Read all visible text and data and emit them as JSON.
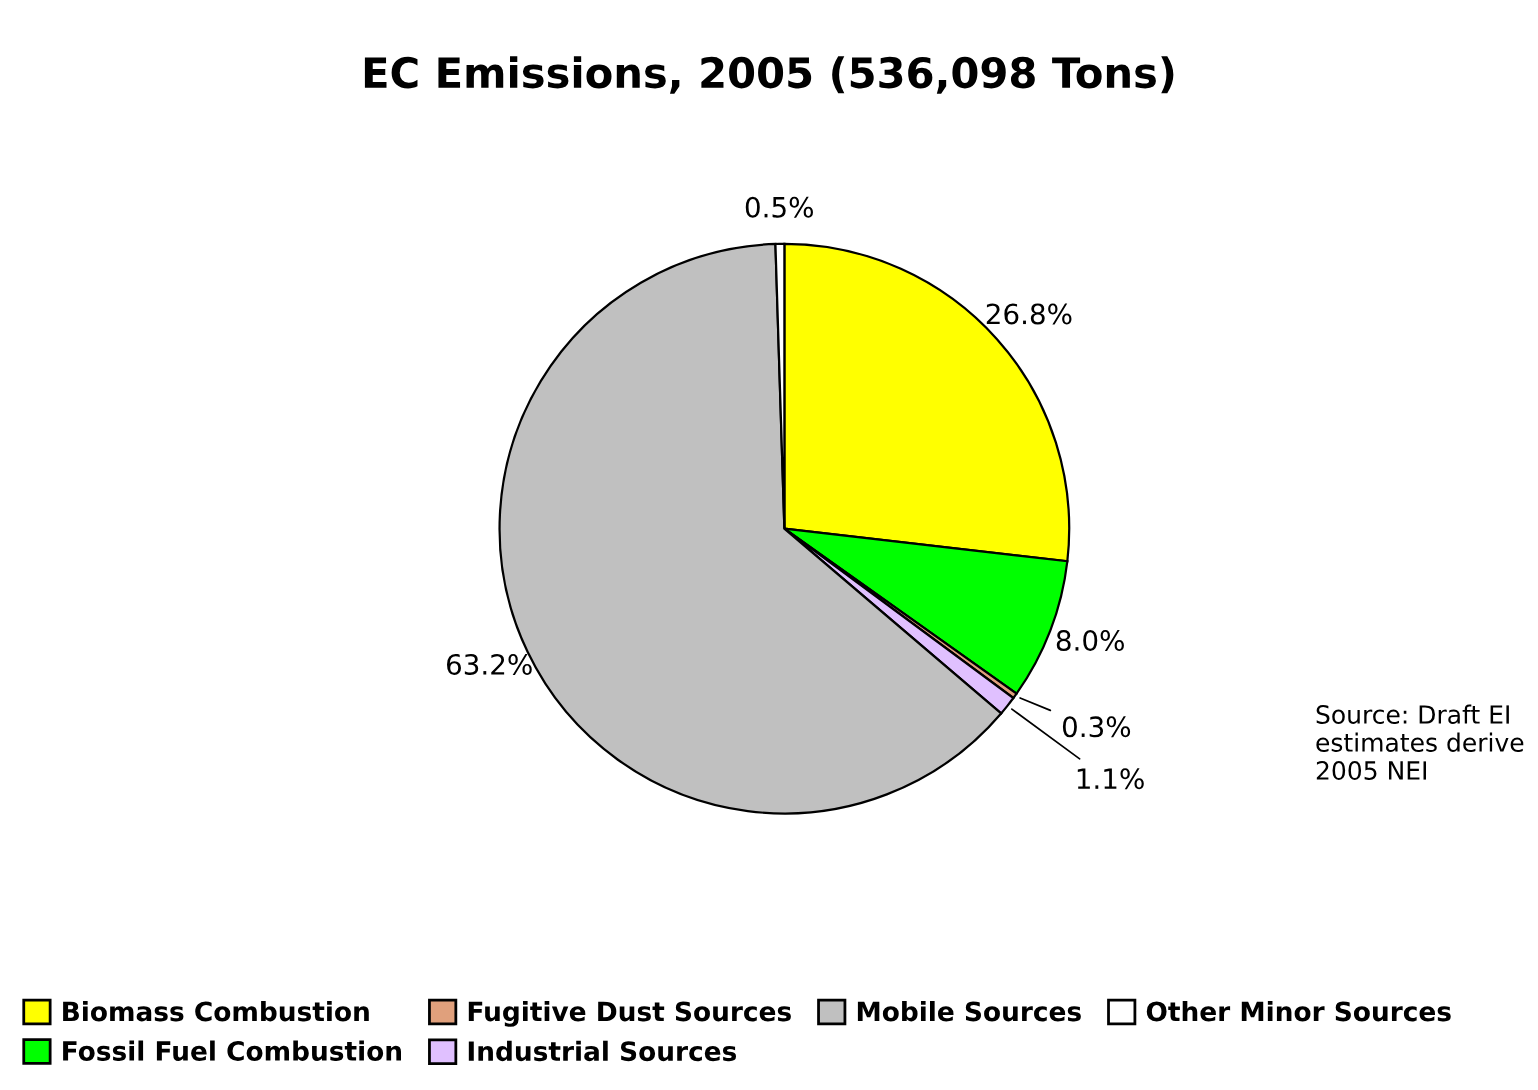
{
  "chart_data": {
    "type": "pie",
    "title": "EC Emissions, 2005 (536,098 Tons)",
    "categories": [
      "Biomass Combustion",
      "Fossil Fuel Combustion",
      "Fugitive Dust Sources",
      "Industrial Sources",
      "Mobile Sources",
      "Other Minor Sources"
    ],
    "values": [
      26.8,
      8.0,
      0.3,
      1.1,
      63.2,
      0.5
    ],
    "colors": [
      "#ffff00",
      "#00ff00",
      "#e0a07c",
      "#e0c0ff",
      "#c0c0c0",
      "#ffffff"
    ],
    "value_labels": [
      "26.8%",
      "8.0%",
      "0.3%",
      "1.1%",
      "63.2%",
      "0.5%"
    ],
    "legend": "bottom",
    "annotations": [
      "Source: Draft EI\nestimates derive\n2005 NEI"
    ]
  }
}
